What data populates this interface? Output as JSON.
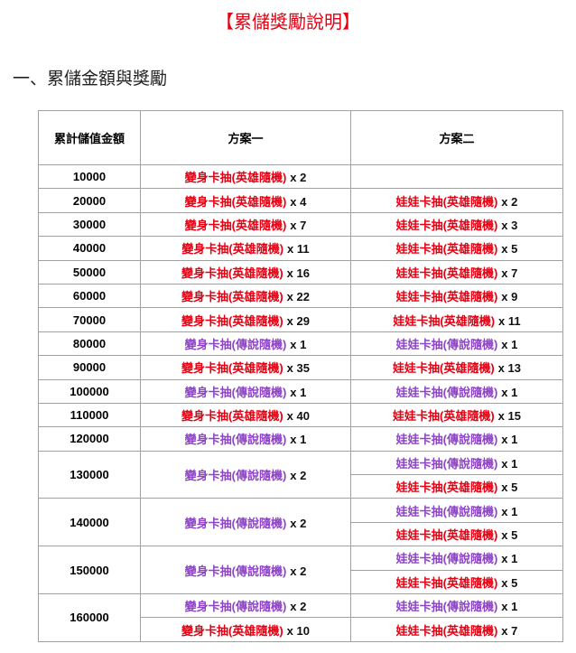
{
  "header": {
    "title": "【累儲獎勵說明】",
    "section": "一、累儲金額與獎勵"
  },
  "table": {
    "columns": [
      "累計儲值金額",
      "方案一",
      "方案二"
    ],
    "rows": [
      {
        "amount": "10000",
        "plan1": [
          {
            "name": "變身卡抽(英雄隨機)",
            "qty": "x 2",
            "color": "#e60012"
          }
        ],
        "plan2": []
      },
      {
        "amount": "20000",
        "plan1": [
          {
            "name": "變身卡抽(英雄隨機)",
            "qty": "x 4",
            "color": "#e60012"
          }
        ],
        "plan2": [
          {
            "name": "娃娃卡抽(英雄隨機)",
            "qty": "x 2",
            "color": "#e60012"
          }
        ]
      },
      {
        "amount": "30000",
        "plan1": [
          {
            "name": "變身卡抽(英雄隨機)",
            "qty": "x 7",
            "color": "#e60012"
          }
        ],
        "plan2": [
          {
            "name": "娃娃卡抽(英雄隨機)",
            "qty": "x 3",
            "color": "#e60012"
          }
        ]
      },
      {
        "amount": "40000",
        "plan1": [
          {
            "name": "變身卡抽(英雄隨機)",
            "qty": "x 11",
            "color": "#e60012"
          }
        ],
        "plan2": [
          {
            "name": "娃娃卡抽(英雄隨機)",
            "qty": "x 5",
            "color": "#e60012"
          }
        ]
      },
      {
        "amount": "50000",
        "plan1": [
          {
            "name": "變身卡抽(英雄隨機)",
            "qty": "x 16",
            "color": "#e60012"
          }
        ],
        "plan2": [
          {
            "name": "娃娃卡抽(英雄隨機)",
            "qty": "x 7",
            "color": "#e60012"
          }
        ]
      },
      {
        "amount": "60000",
        "plan1": [
          {
            "name": "變身卡抽(英雄隨機)",
            "qty": "x 22",
            "color": "#e60012"
          }
        ],
        "plan2": [
          {
            "name": "娃娃卡抽(英雄隨機)",
            "qty": "x 9",
            "color": "#e60012"
          }
        ]
      },
      {
        "amount": "70000",
        "plan1": [
          {
            "name": "變身卡抽(英雄隨機)",
            "qty": "x 29",
            "color": "#e60012"
          }
        ],
        "plan2": [
          {
            "name": "娃娃卡抽(英雄隨機)",
            "qty": "x 11",
            "color": "#e60012"
          }
        ]
      },
      {
        "amount": "80000",
        "plan1": [
          {
            "name": "變身卡抽(傳說隨機)",
            "qty": "x 1",
            "color": "#8e44c6"
          }
        ],
        "plan2": [
          {
            "name": "娃娃卡抽(傳說隨機)",
            "qty": "x 1",
            "color": "#8e44c6"
          }
        ]
      },
      {
        "amount": "90000",
        "plan1": [
          {
            "name": "變身卡抽(英雄隨機)",
            "qty": "x 35",
            "color": "#e60012"
          }
        ],
        "plan2": [
          {
            "name": "娃娃卡抽(英雄隨機)",
            "qty": "x 13",
            "color": "#e60012"
          }
        ]
      },
      {
        "amount": "100000",
        "plan1": [
          {
            "name": "變身卡抽(傳說隨機)",
            "qty": "x 1",
            "color": "#8e44c6"
          }
        ],
        "plan2": [
          {
            "name": "娃娃卡抽(傳說隨機)",
            "qty": "x 1",
            "color": "#8e44c6"
          }
        ]
      },
      {
        "amount": "110000",
        "plan1": [
          {
            "name": "變身卡抽(英雄隨機)",
            "qty": "x 40",
            "color": "#e60012"
          }
        ],
        "plan2": [
          {
            "name": "娃娃卡抽(英雄隨機)",
            "qty": "x 15",
            "color": "#e60012"
          }
        ]
      },
      {
        "amount": "120000",
        "plan1": [
          {
            "name": "變身卡抽(傳說隨機)",
            "qty": "x 1",
            "color": "#8e44c6"
          }
        ],
        "plan2": [
          {
            "name": "娃娃卡抽(傳說隨機)",
            "qty": "x 1",
            "color": "#8e44c6"
          }
        ]
      },
      {
        "amount": "130000",
        "plan1": [
          {
            "name": "變身卡抽(傳說隨機)",
            "qty": "x 2",
            "color": "#8e44c6"
          }
        ],
        "plan2": [
          {
            "name": "娃娃卡抽(傳說隨機)",
            "qty": "x 1",
            "color": "#8e44c6"
          },
          {
            "name": "娃娃卡抽(英雄隨機)",
            "qty": "x 5",
            "color": "#e60012"
          }
        ]
      },
      {
        "amount": "140000",
        "plan1": [
          {
            "name": "變身卡抽(傳說隨機)",
            "qty": "x 2",
            "color": "#8e44c6"
          }
        ],
        "plan2": [
          {
            "name": "娃娃卡抽(傳說隨機)",
            "qty": "x 1",
            "color": "#8e44c6"
          },
          {
            "name": "娃娃卡抽(英雄隨機)",
            "qty": "x 5",
            "color": "#e60012"
          }
        ]
      },
      {
        "amount": "150000",
        "plan1": [
          {
            "name": "變身卡抽(傳說隨機)",
            "qty": "x 2",
            "color": "#8e44c6"
          }
        ],
        "plan2": [
          {
            "name": "娃娃卡抽(傳說隨機)",
            "qty": "x 1",
            "color": "#8e44c6"
          },
          {
            "name": "娃娃卡抽(英雄隨機)",
            "qty": "x 5",
            "color": "#e60012"
          }
        ]
      },
      {
        "amount": "160000",
        "plan1": [
          {
            "name": "變身卡抽(傳說隨機)",
            "qty": "x 2",
            "color": "#8e44c6"
          },
          {
            "name": "變身卡抽(英雄隨機)",
            "qty": "x 10",
            "color": "#e60012"
          }
        ],
        "plan2": [
          {
            "name": "娃娃卡抽(傳說隨機)",
            "qty": "x 1",
            "color": "#8e44c6"
          },
          {
            "name": "娃娃卡抽(英雄隨機)",
            "qty": "x 7",
            "color": "#e60012"
          }
        ]
      }
    ]
  }
}
